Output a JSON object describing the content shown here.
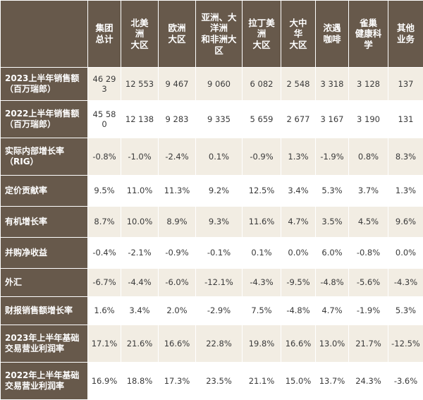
{
  "table": {
    "columns": [
      "",
      "集团\n总计",
      "北美\n洲\n大区",
      "欧洲\n大区",
      "亚洲、大\n洋洲\n和非洲大\n区",
      "拉丁美\n洲\n大区",
      "大中\n华\n大区",
      "浓遇\n咖啡",
      "雀巢\n健康科\n学",
      "其他\n业务"
    ],
    "rows": [
      {
        "label": "2023上半年销售额\n（百万瑞郎）",
        "values": [
          "46 293",
          "12 553",
          "9 467",
          "9 060",
          "6 082",
          "2 548",
          "3 318",
          "3 128",
          "137"
        ]
      },
      {
        "label": "2022上半年销售额\n（百万瑞郎）",
        "values": [
          "45 580",
          "12 138",
          "9 283",
          "9 335",
          "5 659",
          "2 677",
          "3 167",
          "3 190",
          "131"
        ]
      },
      {
        "label": "实际内部增长率\n（RIG）",
        "values": [
          "-0.8%",
          "-1.0%",
          "-2.4%",
          "0.1%",
          "-0.9%",
          "1.3%",
          "-1.9%",
          "0.8%",
          "8.3%"
        ]
      },
      {
        "label": "定价贡献率",
        "values": [
          "9.5%",
          "11.0%",
          "11.3%",
          "9.2%",
          "12.5%",
          "3.4%",
          "5.3%",
          "3.7%",
          "1.3%"
        ]
      },
      {
        "label": "有机增长率",
        "values": [
          "8.7%",
          "10.0%",
          "8.9%",
          "9.3%",
          "11.6%",
          "4.7%",
          "3.5%",
          "4.5%",
          "9.6%"
        ]
      },
      {
        "label": "并购净收益",
        "values": [
          "-0.4%",
          "-2.1%",
          "-0.9%",
          "-0.1%",
          "0.1%",
          "0.0%",
          "6.0%",
          "-0.8%",
          "0.0%"
        ]
      },
      {
        "label": "外汇",
        "values": [
          "-6.7%",
          "-4.4%",
          "-6.0%",
          "-12.1%",
          "-4.3%",
          "-9.5%",
          "-4.8%",
          "-5.6%",
          "-4.3%"
        ]
      },
      {
        "label": "财报销售额增长率",
        "values": [
          "1.6%",
          "3.4%",
          "2.0%",
          "-2.9%",
          "7.5%",
          "-4.8%",
          "4.7%",
          "-1.9%",
          "5.3%"
        ]
      },
      {
        "label": "2023年上半年基础\n交易营业利润率",
        "values": [
          "17.1%",
          "21.6%",
          "16.6%",
          "22.8%",
          "19.8%",
          "16.6%",
          "13.0%",
          "21.7%",
          "-12.5%"
        ]
      },
      {
        "label": "2022年上半年基础\n交易营业利润率",
        "values": [
          "16.9%",
          "18.8%",
          "17.3%",
          "23.5%",
          "21.1%",
          "15.0%",
          "13.7%",
          "24.3%",
          "-3.6%"
        ]
      }
    ]
  },
  "colors": {
    "header_bg": "#67594b",
    "row_band": "#f2ede3",
    "text": "#3a3a3a"
  }
}
